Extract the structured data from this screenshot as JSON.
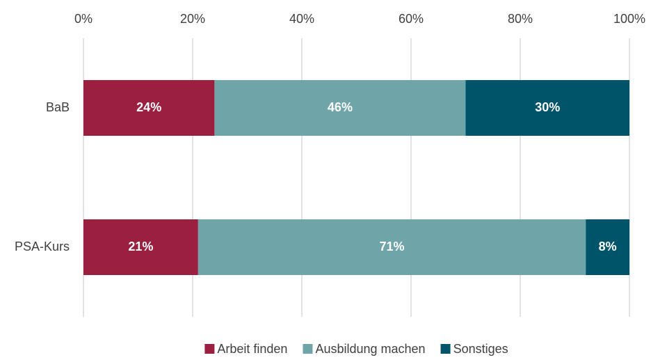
{
  "chart_data": {
    "type": "stacked_bar_horizontal",
    "categories": [
      "BaB",
      "PSA-Kurs"
    ],
    "series": [
      {
        "name": "Arbeit finden",
        "color": "#9b2040",
        "values": [
          24,
          21
        ],
        "value_labels": [
          "24%",
          "21%"
        ]
      },
      {
        "name": "Ausbildung machen",
        "color": "#6fa5a8",
        "values": [
          46,
          71
        ],
        "value_labels": [
          "46%",
          "71%"
        ]
      },
      {
        "name": "Sonstiges",
        "color": "#00546a",
        "values": [
          30,
          8
        ],
        "value_labels": [
          "30%",
          "8%"
        ]
      }
    ],
    "xlim": [
      0,
      100
    ],
    "xticks": [
      {
        "value": 0,
        "label": "0%"
      },
      {
        "value": 20,
        "label": "20%"
      },
      {
        "value": 40,
        "label": "40%"
      },
      {
        "value": 60,
        "label": "60%"
      },
      {
        "value": 80,
        "label": "80%"
      },
      {
        "value": 100,
        "label": "100%"
      }
    ],
    "grid": true,
    "legend": "bottom"
  }
}
